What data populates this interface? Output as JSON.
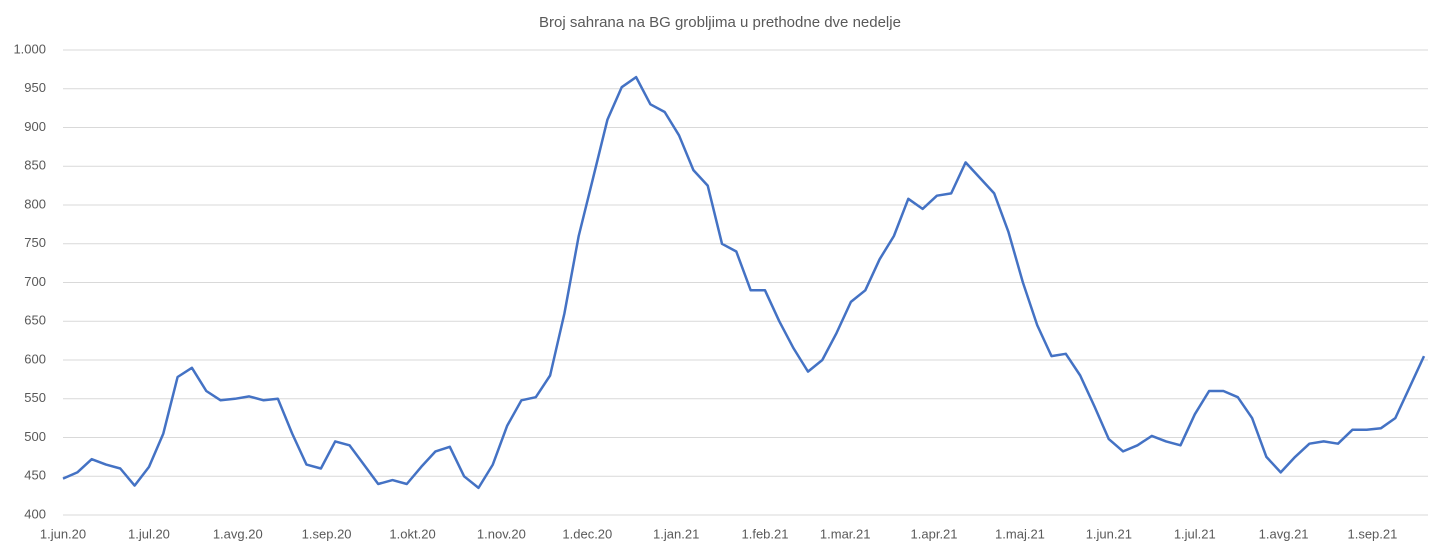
{
  "chart_data": {
    "type": "line",
    "title": "Broj sahrana na BG grobljima u prethodne dve nedelje",
    "x": [
      "2020-06-01",
      "2020-06-06",
      "2020-06-11",
      "2020-06-16",
      "2020-06-21",
      "2020-06-26",
      "2020-07-01",
      "2020-07-06",
      "2020-07-11",
      "2020-07-16",
      "2020-07-21",
      "2020-07-26",
      "2020-07-31",
      "2020-08-05",
      "2020-08-10",
      "2020-08-15",
      "2020-08-20",
      "2020-08-25",
      "2020-08-30",
      "2020-09-04",
      "2020-09-09",
      "2020-09-14",
      "2020-09-19",
      "2020-09-24",
      "2020-09-29",
      "2020-10-04",
      "2020-10-09",
      "2020-10-14",
      "2020-10-19",
      "2020-10-24",
      "2020-10-29",
      "2020-11-03",
      "2020-11-08",
      "2020-11-13",
      "2020-11-18",
      "2020-11-23",
      "2020-11-28",
      "2020-12-03",
      "2020-12-08",
      "2020-12-13",
      "2020-12-18",
      "2020-12-23",
      "2020-12-28",
      "2021-01-02",
      "2021-01-07",
      "2021-01-12",
      "2021-01-17",
      "2021-01-22",
      "2021-01-27",
      "2021-02-01",
      "2021-02-06",
      "2021-02-11",
      "2021-02-16",
      "2021-02-21",
      "2021-02-26",
      "2021-03-03",
      "2021-03-08",
      "2021-03-13",
      "2021-03-18",
      "2021-03-23",
      "2021-03-28",
      "2021-04-02",
      "2021-04-07",
      "2021-04-12",
      "2021-04-17",
      "2021-04-22",
      "2021-04-27",
      "2021-05-02",
      "2021-05-07",
      "2021-05-12",
      "2021-05-17",
      "2021-05-22",
      "2021-05-27",
      "2021-06-01",
      "2021-06-06",
      "2021-06-11",
      "2021-06-16",
      "2021-06-21",
      "2021-06-26",
      "2021-07-01",
      "2021-07-06",
      "2021-07-11",
      "2021-07-16",
      "2021-07-21",
      "2021-07-26",
      "2021-07-31",
      "2021-08-05",
      "2021-08-10",
      "2021-08-15",
      "2021-08-20",
      "2021-08-25",
      "2021-08-30",
      "2021-09-04",
      "2021-09-09",
      "2021-09-14",
      "2021-09-19"
    ],
    "series": [
      {
        "name": "Broj sahrana",
        "color": "#4472c4",
        "values": [
          447,
          455,
          472,
          465,
          460,
          438,
          462,
          505,
          578,
          590,
          560,
          548,
          550,
          553,
          548,
          550,
          505,
          465,
          460,
          495,
          490,
          465,
          440,
          445,
          440,
          462,
          482,
          488,
          450,
          435,
          465,
          515,
          548,
          552,
          580,
          660,
          760,
          835,
          910,
          952,
          965,
          930,
          920,
          890,
          845,
          825,
          750,
          740,
          690,
          690,
          650,
          615,
          585,
          600,
          635,
          675,
          690,
          730,
          760,
          808,
          795,
          812,
          815,
          855,
          835,
          815,
          765,
          700,
          645,
          605,
          608,
          580,
          540,
          498,
          482,
          490,
          502,
          495,
          490,
          530,
          560,
          560,
          552,
          525,
          475,
          455,
          475,
          492,
          495,
          492,
          510,
          510,
          512,
          525,
          565,
          605
        ]
      }
    ],
    "xlim": [
      "2020-06-01",
      "2021-09-19"
    ],
    "xticks": [
      {
        "value": "2020-06-01",
        "label": "1.jun.20"
      },
      {
        "value": "2020-07-01",
        "label": "1.jul.20"
      },
      {
        "value": "2020-08-01",
        "label": "1.avg.20"
      },
      {
        "value": "2020-09-01",
        "label": "1.sep.20"
      },
      {
        "value": "2020-10-01",
        "label": "1.okt.20"
      },
      {
        "value": "2020-11-01",
        "label": "1.nov.20"
      },
      {
        "value": "2020-12-01",
        "label": "1.dec.20"
      },
      {
        "value": "2021-01-01",
        "label": "1.jan.21"
      },
      {
        "value": "2021-02-01",
        "label": "1.feb.21"
      },
      {
        "value": "2021-03-01",
        "label": "1.mar.21"
      },
      {
        "value": "2021-04-01",
        "label": "1.apr.21"
      },
      {
        "value": "2021-05-01",
        "label": "1.maj.21"
      },
      {
        "value": "2021-06-01",
        "label": "1.jun.21"
      },
      {
        "value": "2021-07-01",
        "label": "1.jul.21"
      },
      {
        "value": "2021-08-01",
        "label": "1.avg.21"
      },
      {
        "value": "2021-09-01",
        "label": "1.sep.21"
      }
    ],
    "ylim": [
      400,
      1000
    ],
    "yticks": [
      400,
      450,
      500,
      550,
      600,
      650,
      700,
      750,
      800,
      850,
      900,
      950,
      {
        "value": 1000,
        "label": "1.000"
      }
    ],
    "grid": true
  }
}
